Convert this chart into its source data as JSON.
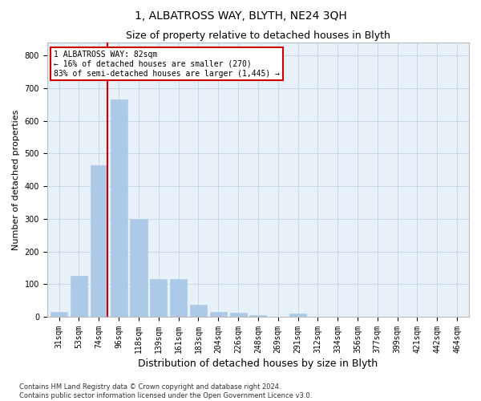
{
  "title": "1, ALBATROSS WAY, BLYTH, NE24 3QH",
  "subtitle": "Size of property relative to detached houses in Blyth",
  "xlabel": "Distribution of detached houses by size in Blyth",
  "ylabel": "Number of detached properties",
  "bar_categories": [
    "31sqm",
    "53sqm",
    "74sqm",
    "96sqm",
    "118sqm",
    "139sqm",
    "161sqm",
    "183sqm",
    "204sqm",
    "226sqm",
    "248sqm",
    "269sqm",
    "291sqm",
    "312sqm",
    "334sqm",
    "356sqm",
    "377sqm",
    "399sqm",
    "421sqm",
    "442sqm",
    "464sqm"
  ],
  "bar_values": [
    15,
    125,
    465,
    665,
    300,
    115,
    115,
    38,
    15,
    12,
    5,
    0,
    10,
    0,
    0,
    0,
    0,
    0,
    0,
    0,
    0
  ],
  "bar_color": "#adc9e8",
  "bar_edgecolor": "#adc9e8",
  "vline_color": "#cc0000",
  "vline_x": 2.42,
  "annotation_text": "1 ALBATROSS WAY: 82sqm\n← 16% of detached houses are smaller (270)\n83% of semi-detached houses are larger (1,445) →",
  "annotation_box_color": "#ffffff",
  "annotation_box_edgecolor": "#cc0000",
  "ylim": [
    0,
    840
  ],
  "yticks": [
    0,
    100,
    200,
    300,
    400,
    500,
    600,
    700,
    800
  ],
  "grid_color": "#c8d8e8",
  "background_color": "#e8f0f8",
  "footer_text": "Contains HM Land Registry data © Crown copyright and database right 2024.\nContains public sector information licensed under the Open Government Licence v3.0.",
  "title_fontsize": 10,
  "subtitle_fontsize": 9,
  "xlabel_fontsize": 9,
  "ylabel_fontsize": 8,
  "tick_fontsize": 7,
  "footer_fontsize": 6,
  "annotation_fontsize": 7
}
